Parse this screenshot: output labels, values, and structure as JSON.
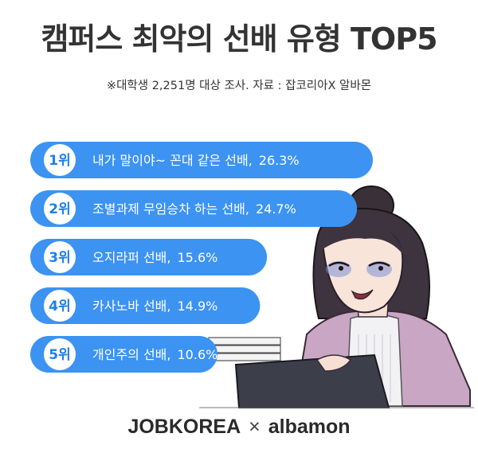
{
  "header": {
    "title": "캠퍼스 최악의 선배 유형 TOP5",
    "subtitle": "※대학생 2,251명 대상 조사. 자료 : 잡코리아X 알바몬"
  },
  "colors": {
    "bar": "#3c93f1",
    "badge_fill": "#ffffff",
    "badge_text": "#1f7fe8",
    "title_text": "#333333"
  },
  "chart_data": {
    "type": "bar",
    "orientation": "horizontal",
    "items": [
      {
        "rank": "1위",
        "label": "내가 말이야~ 꼰대 같은 선배,",
        "value_label": "26.3%",
        "value": 26.3
      },
      {
        "rank": "2위",
        "label": "조별과제 무임승차 하는 선배,",
        "value_label": "24.7%",
        "value": 24.7
      },
      {
        "rank": "3위",
        "label": "오지라퍼 선배,",
        "value_label": "15.6%",
        "value": 15.6
      },
      {
        "rank": "4위",
        "label": "카사노바 선배,",
        "value_label": "14.9%",
        "value": 14.9
      },
      {
        "rank": "5위",
        "label": "개인주의 선배,",
        "value_label": "10.6%",
        "value": 10.6
      }
    ]
  },
  "footer": {
    "logo_left": "JOBKOREA",
    "logo_cross": "×",
    "logo_right": "albamon"
  }
}
